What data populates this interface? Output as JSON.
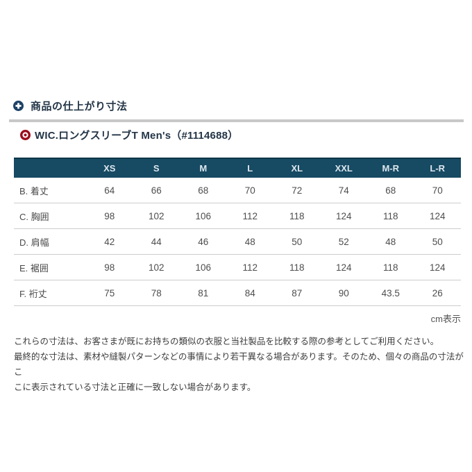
{
  "section": {
    "title": "商品の仕上がり寸法",
    "icon": "plus-circle-icon"
  },
  "product": {
    "title": "WIC.ロングスリーブT Men's（#1114688）",
    "icon": "record-circle-icon"
  },
  "table": {
    "columns": [
      "XS",
      "S",
      "M",
      "L",
      "XL",
      "XXL",
      "M-R",
      "L-R"
    ],
    "rows": [
      {
        "label": "B. 着丈",
        "values": [
          64,
          66,
          68,
          70,
          72,
          74,
          68,
          70
        ]
      },
      {
        "label": "C. 胸囲",
        "values": [
          98,
          102,
          106,
          112,
          118,
          124,
          118,
          124
        ]
      },
      {
        "label": "D. 肩幅",
        "values": [
          42,
          44,
          46,
          48,
          50,
          52,
          48,
          50
        ]
      },
      {
        "label": "E. 裾囲",
        "values": [
          98,
          102,
          106,
          112,
          118,
          124,
          118,
          124
        ]
      },
      {
        "label": "F. 裄丈",
        "values": [
          75,
          78,
          81,
          84,
          87,
          90,
          43.5,
          26
        ]
      }
    ],
    "unit_note": "cm表示"
  },
  "notes_lines": [
    "これらの寸法は、お客さまが既にお持ちの類似の衣服と当社製品を比較する際の参考としてご利用ください。",
    "最終的な寸法は、素材や縫製パターンなどの事情により若干異なる場合があります。そのため、個々の商品の寸法がこ",
    "こに表示されている寸法と正確に一致しない場合があります。"
  ],
  "colors": {
    "header_navy": "#174a63",
    "title_navy": "#233547",
    "accent_red": "#9b0d1a",
    "icon_navy": "#1d4266",
    "divider_gray": "#c8c8c8"
  }
}
